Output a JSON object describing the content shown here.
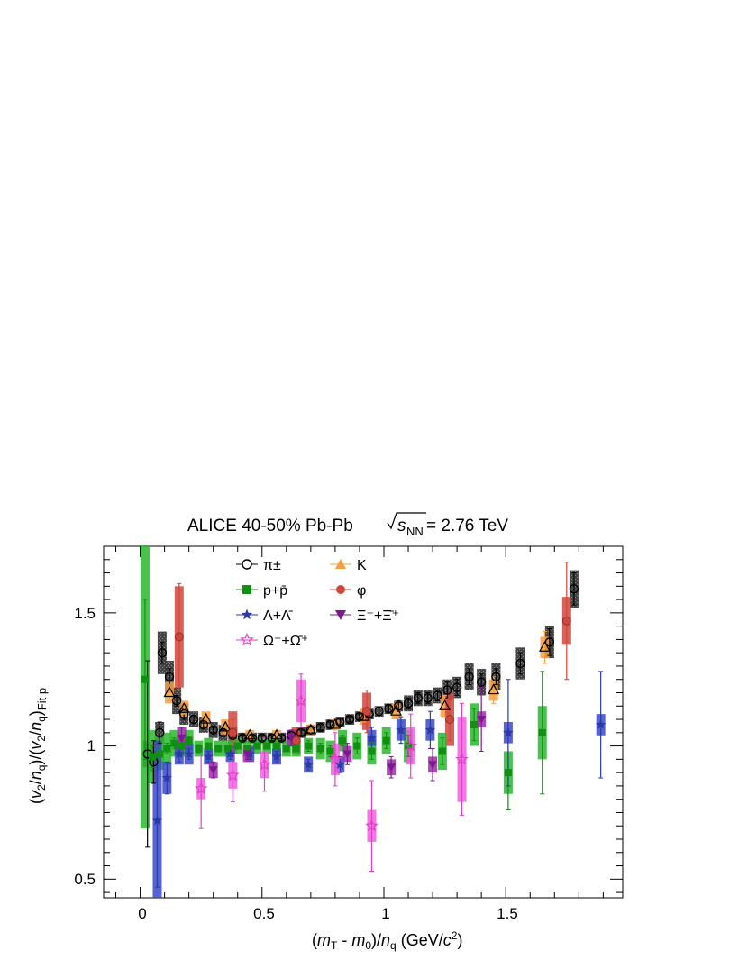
{
  "chart_data": {
    "type": "scatter",
    "title": "ALICE 40-50% Pb-Pb √s_NN = 2.76 TeV",
    "title_parts": {
      "prefix": "ALICE 40-50% Pb-Pb ",
      "sqrt_s": "s",
      "sub_nn": "NN",
      "suffix": " = 2.76 TeV"
    },
    "xlabel": "(m_T - m_0)/n_q (GeV/c^2)",
    "xlabel_parts": {
      "m": "m",
      "T": "T",
      "dash": " - ",
      "m0": "m",
      "zero": "0",
      "slash": ")/",
      "n": "n",
      "q": "q",
      "unit": " (GeV/",
      "c": "c",
      "two": "2",
      "close": ")"
    },
    "ylabel": "(v_2/n_q)/(v_2/n_q)_Fit p",
    "ylabel_parts": {
      "open": "(",
      "v": "v",
      "two": "2",
      "slash": "/",
      "n": "n",
      "q": "q",
      "mid": ")/(",
      "v2": "v",
      "two2": "2",
      "slash2": "/",
      "n2": "n",
      "q2": "q",
      "close": ")",
      "sub": "Fit p"
    },
    "xlim": [
      -0.15,
      1.98
    ],
    "ylim": [
      0.43,
      1.75
    ],
    "xticks": [
      0,
      0.5,
      1,
      1.5
    ],
    "xtick_labels": [
      "0",
      "0.5",
      "1",
      "1.5"
    ],
    "yticks": [
      0.5,
      1,
      1.5
    ],
    "ytick_labels": [
      "0.5",
      "1",
      "1.5"
    ],
    "legend_position": "top-center",
    "series": [
      {
        "name": "π±",
        "key": "pi",
        "marker": "open-circle",
        "color": "#000000",
        "sys_color": "#3a3a3a",
        "points": [
          [
            0.03,
            0.97,
            0.35,
            0.05
          ],
          [
            0.055,
            0.94,
            0.08,
            0.04
          ],
          [
            0.08,
            1.05,
            0.04,
            0.04
          ],
          [
            0.09,
            1.35,
            0.04,
            0.08
          ],
          [
            0.12,
            1.26,
            0.03,
            0.06
          ],
          [
            0.15,
            1.17,
            0.02,
            0.05
          ],
          [
            0.18,
            1.12,
            0.02,
            0.04
          ],
          [
            0.22,
            1.1,
            0.015,
            0.03
          ],
          [
            0.26,
            1.08,
            0.015,
            0.03
          ],
          [
            0.3,
            1.06,
            0.01,
            0.03
          ],
          [
            0.34,
            1.05,
            0.01,
            0.03
          ],
          [
            0.38,
            1.04,
            0.01,
            0.03
          ],
          [
            0.42,
            1.03,
            0.01,
            0.02
          ],
          [
            0.46,
            1.03,
            0.01,
            0.02
          ],
          [
            0.5,
            1.03,
            0.01,
            0.02
          ],
          [
            0.54,
            1.03,
            0.01,
            0.02
          ],
          [
            0.58,
            1.03,
            0.01,
            0.02
          ],
          [
            0.62,
            1.04,
            0.01,
            0.02
          ],
          [
            0.66,
            1.05,
            0.01,
            0.02
          ],
          [
            0.7,
            1.06,
            0.01,
            0.02
          ],
          [
            0.74,
            1.07,
            0.01,
            0.02
          ],
          [
            0.78,
            1.08,
            0.01,
            0.02
          ],
          [
            0.82,
            1.09,
            0.01,
            0.02
          ],
          [
            0.86,
            1.1,
            0.01,
            0.02
          ],
          [
            0.9,
            1.11,
            0.01,
            0.02
          ],
          [
            0.94,
            1.12,
            0.01,
            0.02
          ],
          [
            0.98,
            1.13,
            0.015,
            0.02
          ],
          [
            1.02,
            1.14,
            0.015,
            0.02
          ],
          [
            1.06,
            1.15,
            0.02,
            0.02
          ],
          [
            1.1,
            1.16,
            0.02,
            0.03
          ],
          [
            1.14,
            1.18,
            0.02,
            0.03
          ],
          [
            1.18,
            1.18,
            0.02,
            0.03
          ],
          [
            1.22,
            1.19,
            0.02,
            0.03
          ],
          [
            1.26,
            1.21,
            0.03,
            0.04
          ],
          [
            1.3,
            1.22,
            0.03,
            0.04
          ],
          [
            1.35,
            1.26,
            0.03,
            0.05
          ],
          [
            1.4,
            1.24,
            0.03,
            0.05
          ],
          [
            1.46,
            1.26,
            0.03,
            0.05
          ],
          [
            1.56,
            1.31,
            0.04,
            0.06
          ],
          [
            1.68,
            1.39,
            0.05,
            0.06
          ],
          [
            1.78,
            1.59,
            0.06,
            0.07
          ]
        ]
      },
      {
        "name": "K",
        "key": "k",
        "marker": "triangle",
        "color": "#f5a040",
        "sys_color": "#f5a040",
        "points": [
          [
            0.12,
            1.2,
            0.03,
            0.04
          ],
          [
            0.18,
            1.14,
            0.02,
            0.03
          ],
          [
            0.27,
            1.1,
            0.02,
            0.03
          ],
          [
            0.35,
            1.07,
            0.02,
            0.03
          ],
          [
            0.45,
            1.04,
            0.015,
            0.02
          ],
          [
            0.56,
            1.04,
            0.015,
            0.02
          ],
          [
            0.7,
            1.06,
            0.02,
            0.02
          ],
          [
            0.8,
            1.08,
            0.02,
            0.02
          ],
          [
            0.92,
            1.11,
            0.02,
            0.03
          ],
          [
            1.05,
            1.13,
            0.02,
            0.03
          ],
          [
            1.25,
            1.15,
            0.04,
            0.04
          ],
          [
            1.45,
            1.21,
            0.05,
            0.04
          ],
          [
            1.66,
            1.37,
            0.06,
            0.04
          ]
        ]
      },
      {
        "name": "φ",
        "key": "phi",
        "marker": "filled-circle",
        "color": "#d0463c",
        "sys_color": "#d0463c",
        "points": [
          [
            0.16,
            1.41,
            0.2,
            0.19
          ],
          [
            0.38,
            1.05,
            0.05,
            0.08
          ],
          [
            0.64,
            1.02,
            0.04,
            0.05
          ],
          [
            0.93,
            1.13,
            0.08,
            0.07
          ],
          [
            1.27,
            1.1,
            0.08,
            0.1
          ],
          [
            1.75,
            1.47,
            0.22,
            0.09
          ]
        ]
      },
      {
        "name": "p+p̄",
        "key": "p",
        "marker": "filled-square",
        "color": "#109010",
        "sys_color": "#29b82e",
        "points": [
          [
            0.02,
            1.25,
            0.3,
            0.56
          ],
          [
            0.05,
            0.96,
            0.04,
            0.1
          ],
          [
            0.08,
            0.97,
            0.03,
            0.06
          ],
          [
            0.11,
            0.99,
            0.02,
            0.06
          ],
          [
            0.14,
            1.01,
            0.02,
            0.05
          ],
          [
            0.17,
            1.0,
            0.02,
            0.04
          ],
          [
            0.2,
            1.02,
            0.015,
            0.04
          ],
          [
            0.24,
            0.99,
            0.015,
            0.03
          ],
          [
            0.28,
            1.0,
            0.01,
            0.03
          ],
          [
            0.32,
            0.99,
            0.01,
            0.03
          ],
          [
            0.36,
            0.99,
            0.01,
            0.03
          ],
          [
            0.4,
            1.0,
            0.01,
            0.03
          ],
          [
            0.44,
            0.99,
            0.01,
            0.03
          ],
          [
            0.48,
            1.0,
            0.01,
            0.03
          ],
          [
            0.52,
            1.0,
            0.01,
            0.03
          ],
          [
            0.56,
            1.0,
            0.01,
            0.03
          ],
          [
            0.6,
            0.99,
            0.01,
            0.03
          ],
          [
            0.64,
            0.99,
            0.01,
            0.03
          ],
          [
            0.69,
            1.0,
            0.02,
            0.03
          ],
          [
            0.74,
            0.99,
            0.02,
            0.04
          ],
          [
            0.78,
            0.98,
            0.02,
            0.04
          ],
          [
            0.83,
            1.02,
            0.02,
            0.04
          ],
          [
            0.89,
            1.0,
            0.03,
            0.05
          ],
          [
            0.95,
            0.98,
            0.03,
            0.05
          ],
          [
            1.01,
            1.02,
            0.03,
            0.05
          ],
          [
            1.1,
            1.0,
            0.04,
            0.06
          ],
          [
            1.24,
            0.98,
            0.05,
            0.07
          ],
          [
            1.37,
            1.08,
            0.06,
            0.08
          ],
          [
            1.51,
            0.9,
            0.14,
            0.08
          ],
          [
            1.65,
            1.05,
            0.23,
            0.1
          ]
        ]
      },
      {
        "name": "Λ+Λ̄",
        "key": "lambda",
        "marker": "star",
        "color": "#2b3aa8",
        "sys_color": "#3a48c8",
        "points": [
          [
            0.07,
            0.72,
            0.25,
            0.3
          ],
          [
            0.11,
            0.88,
            0.06,
            0.06
          ],
          [
            0.16,
            0.97,
            0.03,
            0.04
          ],
          [
            0.2,
            0.97,
            0.02,
            0.04
          ],
          [
            0.28,
            0.96,
            0.02,
            0.03
          ],
          [
            0.37,
            0.97,
            0.02,
            0.03
          ],
          [
            0.45,
            0.97,
            0.02,
            0.03
          ],
          [
            0.56,
            0.96,
            0.02,
            0.03
          ],
          [
            0.69,
            0.93,
            0.02,
            0.03
          ],
          [
            0.82,
            0.93,
            0.03,
            0.03
          ],
          [
            0.95,
            1.03,
            0.04,
            0.03
          ],
          [
            1.07,
            1.06,
            0.05,
            0.04
          ],
          [
            1.19,
            1.06,
            0.07,
            0.04
          ],
          [
            1.51,
            1.05,
            0.2,
            0.04
          ],
          [
            1.89,
            1.08,
            0.2,
            0.04
          ]
        ]
      },
      {
        "name": "Ξ⁻+Ξ̄⁺",
        "key": "xi",
        "marker": "filled-triangle-down",
        "color": "#7a1a8c",
        "sys_color": "#a02aac",
        "points": [
          [
            0.17,
            1.03,
            0.04,
            0.04
          ],
          [
            0.3,
            0.91,
            0.03,
            0.03
          ],
          [
            0.44,
            0.97,
            0.02,
            0.03
          ],
          [
            0.62,
            1.03,
            0.03,
            0.03
          ],
          [
            0.85,
            0.97,
            0.04,
            0.03
          ],
          [
            1.03,
            0.92,
            0.04,
            0.03
          ],
          [
            1.2,
            0.93,
            0.06,
            0.03
          ],
          [
            1.4,
            1.1,
            0.12,
            0.03
          ]
        ]
      },
      {
        "name": "Ω⁻+Ω̄⁺",
        "key": "omega",
        "marker": "open-star",
        "color": "#e040c8",
        "sys_color": "#f060e0",
        "points": [
          [
            0.25,
            0.84,
            0.15,
            0.04
          ],
          [
            0.38,
            0.89,
            0.1,
            0.05
          ],
          [
            0.51,
            0.93,
            0.1,
            0.05
          ],
          [
            0.66,
            1.17,
            0.1,
            0.08
          ],
          [
            0.8,
            0.95,
            0.1,
            0.06
          ],
          [
            0.95,
            0.7,
            0.17,
            0.06
          ],
          [
            1.11,
            1.0,
            0.12,
            0.07
          ],
          [
            1.32,
            0.95,
            0.21,
            0.16
          ]
        ]
      }
    ]
  }
}
